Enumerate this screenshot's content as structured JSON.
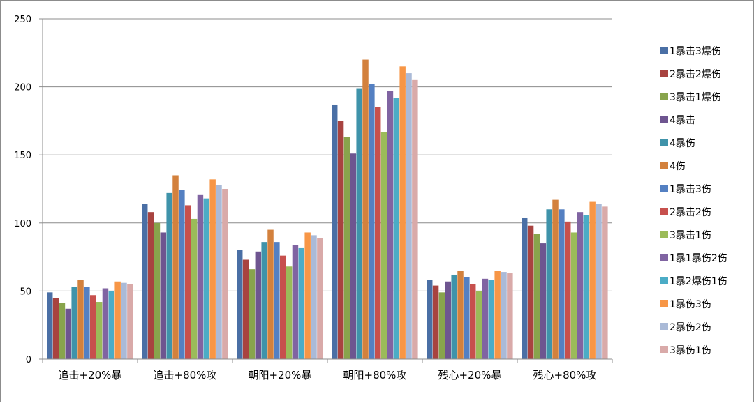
{
  "chart_data": {
    "type": "bar",
    "title": "",
    "xlabel": "",
    "ylabel": "",
    "ylim": [
      0,
      250
    ],
    "yticks": [
      0,
      50,
      100,
      150,
      200,
      250
    ],
    "grid": true,
    "legend_position": "right",
    "categories": [
      "追击+20%暴",
      "追击+80%攻",
      "朝阳+20%暴",
      "朝阳+80%攻",
      "残心+20%暴",
      "残心+80%攻"
    ],
    "series": [
      {
        "name": "1暴击3爆伤",
        "color": "#4a6fa5",
        "values": [
          49,
          114,
          80,
          187,
          58,
          104
        ]
      },
      {
        "name": "2暴击2爆伤",
        "color": "#a84340",
        "values": [
          45,
          108,
          73,
          175,
          54,
          98
        ]
      },
      {
        "name": "3暴击1爆伤",
        "color": "#88a44c",
        "values": [
          41,
          100,
          66,
          163,
          49,
          92
        ]
      },
      {
        "name": "4暴击",
        "color": "#6e5590",
        "values": [
          37,
          93,
          79,
          151,
          57,
          85
        ]
      },
      {
        "name": "4暴伤",
        "color": "#3f93aa",
        "values": [
          53,
          122,
          86,
          199,
          62,
          110
        ]
      },
      {
        "name": "4伤",
        "color": "#d3813d",
        "values": [
          58,
          135,
          95,
          220,
          65,
          117
        ]
      },
      {
        "name": "1暴击3伤",
        "color": "#5480c2",
        "values": [
          53,
          124,
          86,
          202,
          60,
          110
        ]
      },
      {
        "name": "2暴击2伤",
        "color": "#c7504d",
        "values": [
          47,
          113,
          76,
          185,
          55,
          101
        ]
      },
      {
        "name": "3暴击1伤",
        "color": "#9bbb59",
        "values": [
          42,
          103,
          68,
          167,
          50,
          93
        ]
      },
      {
        "name": "1暴1暴伤2伤",
        "color": "#8064a2",
        "values": [
          52,
          121,
          84,
          197,
          59,
          108
        ]
      },
      {
        "name": "1暴2爆伤1伤",
        "color": "#4bacc6",
        "values": [
          50,
          118,
          82,
          192,
          58,
          106
        ]
      },
      {
        "name": "1暴伤3伤",
        "color": "#f79646",
        "values": [
          57,
          132,
          93,
          215,
          65,
          116
        ]
      },
      {
        "name": "2暴伤2伤",
        "color": "#aabad7",
        "values": [
          56,
          128,
          91,
          210,
          64,
          114
        ]
      },
      {
        "name": "3暴伤1伤",
        "color": "#d9aaa9",
        "values": [
          55,
          125,
          89,
          205,
          63,
          112
        ]
      }
    ]
  }
}
